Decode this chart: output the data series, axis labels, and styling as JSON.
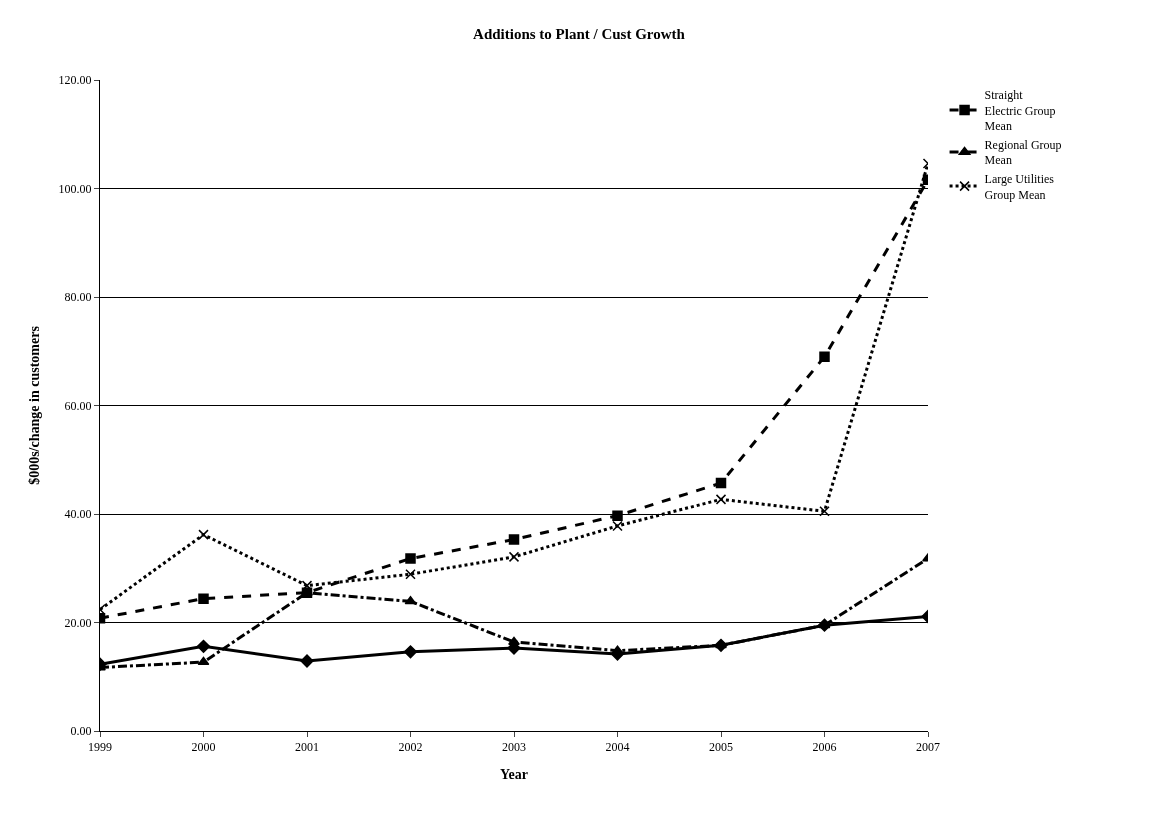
{
  "chart_data": {
    "type": "line",
    "title": "Additions to Plant / Cust Growth",
    "xlabel": "Year",
    "ylabel": "$000s/change in customers",
    "x": [
      1999,
      2000,
      2001,
      2002,
      2003,
      2004,
      2005,
      2006,
      2007
    ],
    "xlim": [
      1999,
      2007
    ],
    "xticks": [
      1999,
      2000,
      2001,
      2002,
      2003,
      2004,
      2005,
      2006,
      2007
    ],
    "ylim": [
      0,
      120
    ],
    "yticks": [
      {
        "value": 0,
        "label": "0.00"
      },
      {
        "value": 20,
        "label": "20.00"
      },
      {
        "value": 40,
        "label": "40.00"
      },
      {
        "value": 60,
        "label": "60.00"
      },
      {
        "value": 80,
        "label": "80.00"
      },
      {
        "value": 100,
        "label": "100.00"
      },
      {
        "value": 120,
        "label": "120.00"
      }
    ],
    "grid": "y",
    "legend": "right",
    "series": [
      {
        "color": "#000000",
        "marker": "diamond",
        "line_style": "solid",
        "values": [
          12.3,
          15.6,
          12.9,
          14.6,
          15.3,
          14.2,
          15.8,
          19.5,
          21.1
        ]
      },
      {
        "name": "Straight Electric Group Mean",
        "color": "#000000",
        "marker": "square",
        "line_style": "dashed",
        "values": [
          20.8,
          24.4,
          25.5,
          31.8,
          35.3,
          39.7,
          45.7,
          69.0,
          101.6
        ]
      },
      {
        "name": "Regional Group Mean",
        "color": "#000000",
        "marker": "triangle",
        "line_style": "dashdot",
        "values": [
          11.7,
          12.7,
          25.5,
          23.9,
          16.4,
          14.8,
          15.8,
          19.5,
          31.8
        ]
      },
      {
        "name": "Large Utilities Group Mean",
        "color": "#000000",
        "marker": "cross",
        "line_style": "dotted",
        "values": [
          22.4,
          36.2,
          26.8,
          28.9,
          32.1,
          37.8,
          42.7,
          40.5,
          104.6
        ]
      }
    ]
  }
}
